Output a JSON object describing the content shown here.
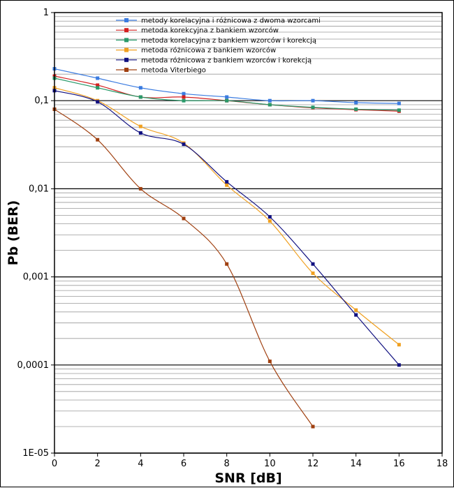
{
  "chart_data": {
    "type": "line",
    "xlabel": "SNR [dB]",
    "ylabel": "Pb (BER)",
    "xlim": [
      0,
      18
    ],
    "ylim": [
      1e-05,
      1
    ],
    "yscale": "log",
    "grid": true,
    "legend_position": "top-right",
    "x_ticks": [
      "0",
      "2",
      "4",
      "6",
      "8",
      "10",
      "12",
      "14",
      "16",
      "18"
    ],
    "y_ticks": [
      "1",
      "0,1",
      "0,01",
      "0,001",
      "0,0001",
      "1E-05"
    ],
    "series": [
      {
        "name": "metody korelacyjna i różnicowa z dwoma wzorcami",
        "color": "#3a7be0",
        "x": [
          0,
          2,
          4,
          6,
          8,
          10,
          12,
          14,
          16
        ],
        "y": [
          0.23,
          0.18,
          0.14,
          0.12,
          0.11,
          0.1,
          0.1,
          0.095,
          0.093
        ]
      },
      {
        "name": "metoda korekcyjna z bankiem wzorców",
        "color": "#d42020",
        "x": [
          0,
          2,
          4,
          6,
          8,
          10,
          12,
          14,
          16
        ],
        "y": [
          0.19,
          0.15,
          0.11,
          0.11,
          0.1,
          0.09,
          0.083,
          0.079,
          0.076
        ]
      },
      {
        "name": "metoda korelacyjna z bankiem wzorców i korekcją",
        "color": "#2a9a6a",
        "x": [
          0,
          2,
          4,
          6,
          8,
          10,
          12,
          14,
          16
        ],
        "y": [
          0.18,
          0.14,
          0.11,
          0.1,
          0.1,
          0.09,
          0.084,
          0.08,
          0.078
        ]
      },
      {
        "name": "metoda różnicowa z bankiem wzorców",
        "color": "#f0a020",
        "x": [
          0,
          2,
          4,
          6,
          8,
          10,
          12,
          14,
          16
        ],
        "y": [
          0.14,
          0.1,
          0.051,
          0.033,
          0.011,
          0.0043,
          0.0011,
          0.00042,
          0.00017
        ]
      },
      {
        "name": "metoda różnicowa z bankiem wzorców i korekcją",
        "color": "#101080",
        "x": [
          0,
          2,
          4,
          6,
          8,
          10,
          12,
          14,
          16
        ],
        "y": [
          0.13,
          0.097,
          0.043,
          0.032,
          0.012,
          0.0048,
          0.0014,
          0.00037,
          0.0001
        ]
      },
      {
        "name": "metoda Viterbiego",
        "color": "#a04010",
        "x": [
          0,
          2,
          4,
          6,
          8,
          10,
          12
        ],
        "y": [
          0.08,
          0.036,
          0.01,
          0.0046,
          0.0014,
          0.00011,
          2e-05
        ]
      }
    ]
  }
}
